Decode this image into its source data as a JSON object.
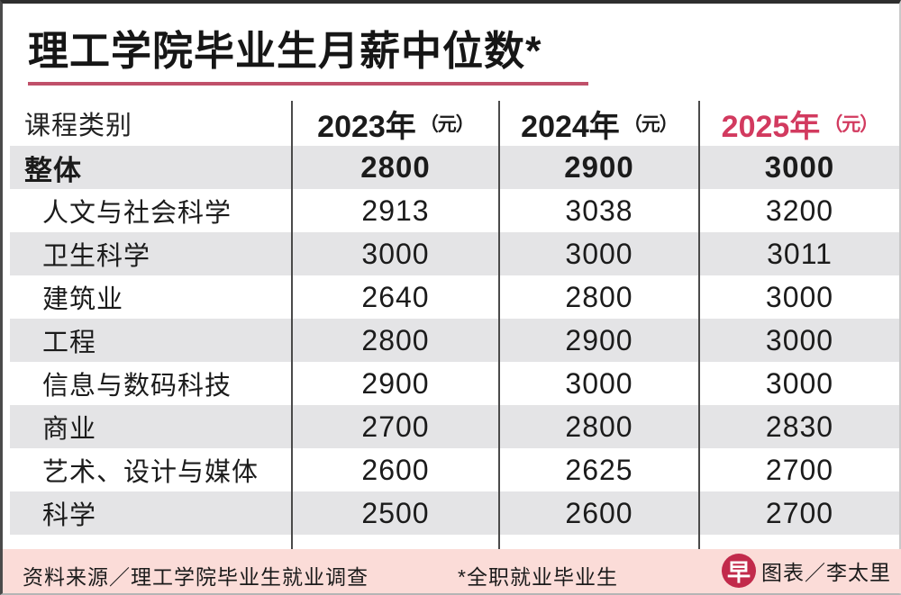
{
  "title": "理工学院毕业生月薪中位数*",
  "table": {
    "category_header": "课程类别",
    "year_headers": [
      {
        "year": "2023年",
        "unit": "（元）"
      },
      {
        "year": "2024年",
        "unit": "（元）"
      },
      {
        "year": "2025年",
        "unit": "（元）"
      }
    ],
    "rows": [
      {
        "label": "整体",
        "values": [
          "2800",
          "2900",
          "3000"
        ]
      },
      {
        "label": "人文与社会科学",
        "values": [
          "2913",
          "3038",
          "3200"
        ]
      },
      {
        "label": "卫生科学",
        "values": [
          "3000",
          "3000",
          "3011"
        ]
      },
      {
        "label": "建筑业",
        "values": [
          "2640",
          "2800",
          "3000"
        ]
      },
      {
        "label": "工程",
        "values": [
          "2800",
          "2900",
          "3000"
        ]
      },
      {
        "label": "信息与数码科技",
        "values": [
          "2900",
          "3000",
          "3000"
        ]
      },
      {
        "label": "商业",
        "values": [
          "2700",
          "2800",
          "2830"
        ]
      },
      {
        "label": "艺术、设计与媒体",
        "values": [
          "2600",
          "2625",
          "2700"
        ]
      },
      {
        "label": "科学",
        "values": [
          "2500",
          "2600",
          "2700"
        ]
      }
    ]
  },
  "footer": {
    "source": "资料来源／理工学院毕业生就业调查",
    "footnote": "*全职就业毕业生",
    "logo_char": "早",
    "credit": "图表／李太里"
  },
  "colors": {
    "accent_red": "#d23a5f",
    "underline_pink": "#c0506a",
    "stripe_gray": "#e4e4e6",
    "footer_pink": "#fbdcd8",
    "logo_red": "#c22a4b"
  },
  "chart_data": {
    "type": "table",
    "title": "理工学院毕业生月薪中位数*",
    "categories": [
      "整体",
      "人文与社会科学",
      "卫生科学",
      "建筑业",
      "工程",
      "信息与数码科技",
      "商业",
      "艺术、设计与媒体",
      "科学"
    ],
    "series": [
      {
        "name": "2023年（元）",
        "values": [
          2800,
          2913,
          3000,
          2640,
          2800,
          2900,
          2700,
          2600,
          2500
        ]
      },
      {
        "name": "2024年（元）",
        "values": [
          2900,
          3038,
          3000,
          2800,
          2900,
          3000,
          2800,
          2625,
          2600
        ]
      },
      {
        "name": "2025年（元）",
        "values": [
          3000,
          3200,
          3011,
          3000,
          3000,
          3000,
          2830,
          2700,
          2700
        ]
      }
    ],
    "source": "资料来源／理工学院毕业生就业调查",
    "footnote": "*全职就业毕业生",
    "credit": "图表／李太里"
  }
}
